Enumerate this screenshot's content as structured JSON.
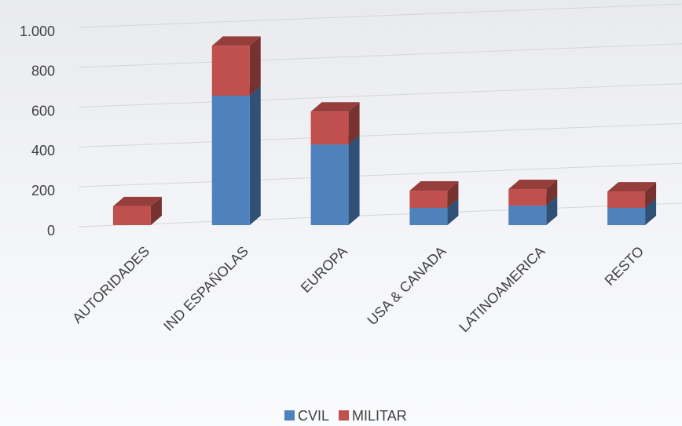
{
  "chart_data": {
    "type": "bar",
    "stacked": true,
    "categories": [
      "AUTORIDADES",
      "IND ESPAÑOLAS",
      "EUROPA",
      "USA & CANADA",
      "LATINOAMERICA",
      "RESTO"
    ],
    "series": [
      {
        "name": "CVIL",
        "color": "#4f81bd",
        "values": [
          0,
          650,
          405,
          87,
          98,
          87
        ]
      },
      {
        "name": "MILITAR",
        "color": "#c0504d",
        "values": [
          95,
          250,
          165,
          86,
          83,
          82
        ]
      }
    ],
    "ylim": [
      0,
      1000
    ],
    "yticks": [
      0,
      200,
      400,
      600,
      800,
      {
        "value": 1000,
        "label": "1.000"
      }
    ],
    "grid": true,
    "legend": "bottom"
  }
}
